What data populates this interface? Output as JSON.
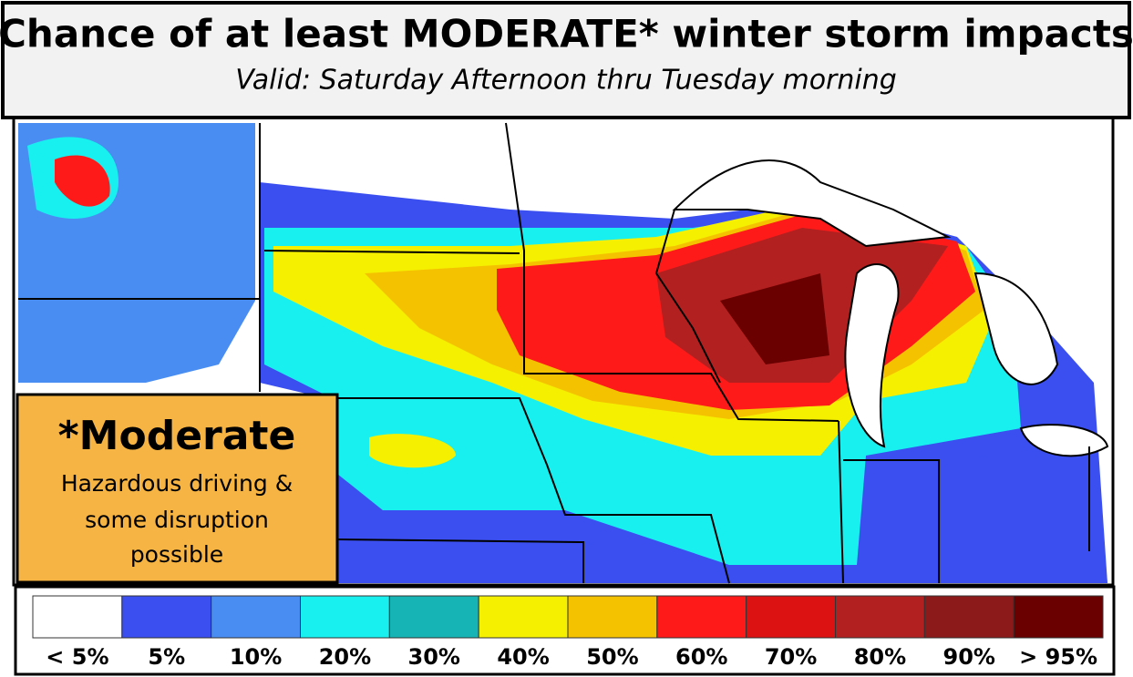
{
  "header": {
    "title": "Chance of at least MODERATE* winter storm impacts",
    "subtitle": "Valid: Saturday Afternoon thru Tuesday morning"
  },
  "note": {
    "heading": "*Moderate",
    "text_lines": [
      "Hazardous driving &",
      "some disruption",
      "possible"
    ]
  },
  "legend": {
    "items": [
      {
        "label": "< 5%",
        "color": "#ffffff"
      },
      {
        "label": "5%",
        "color": "#3b4ff0"
      },
      {
        "label": "10%",
        "color": "#4a8df2"
      },
      {
        "label": "20%",
        "color": "#18f0f0"
      },
      {
        "label": "30%",
        "color": "#16b4b4"
      },
      {
        "label": "40%",
        "color": "#f5f000"
      },
      {
        "label": "50%",
        "color": "#f5c200"
      },
      {
        "label": "60%",
        "color": "#ff1a1a"
      },
      {
        "label": "70%",
        "color": "#dc1212"
      },
      {
        "label": "80%",
        "color": "#b22020"
      },
      {
        "label": "90%",
        "color": "#8c1a1a"
      },
      {
        "label": "> 95%",
        "color": "#6a0000"
      }
    ]
  }
}
